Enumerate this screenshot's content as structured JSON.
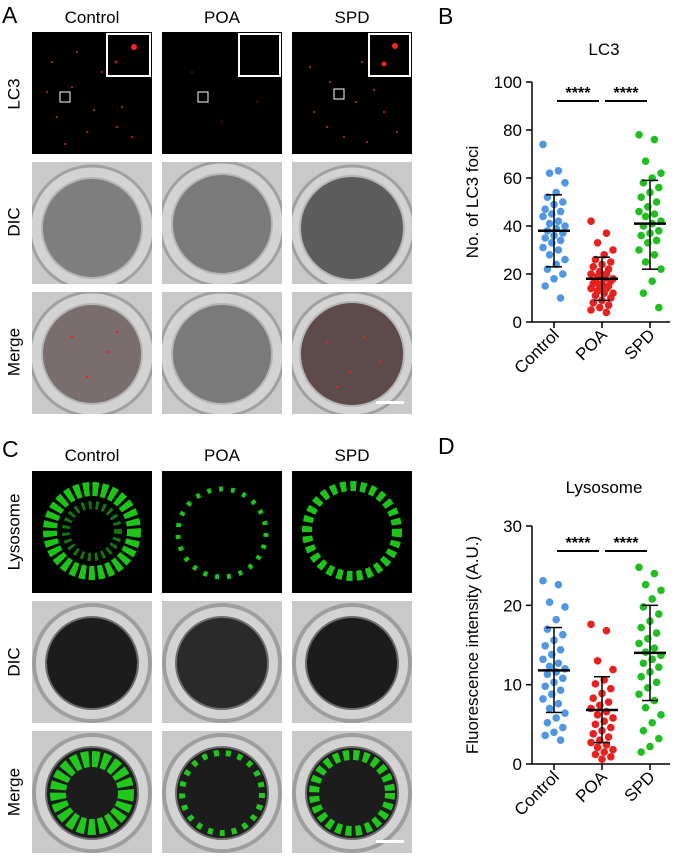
{
  "panels": {
    "A": {
      "letter": "A",
      "columns": [
        "Control",
        "POA",
        "SPD"
      ],
      "rows": [
        "LC3",
        "DIC",
        "Merge"
      ],
      "colors": {
        "fluorescence": "#e8202a"
      }
    },
    "C": {
      "letter": "C",
      "columns": [
        "Control",
        "POA",
        "SPD"
      ],
      "rows": [
        "Lysosome",
        "DIC",
        "Merge"
      ],
      "colors": {
        "fluorescence": "#22e61c"
      }
    }
  },
  "chart_data": [
    {
      "letter": "B",
      "type": "scatter",
      "title": "LC3",
      "ylabel": "No. of LC3 foci",
      "xlabel": "",
      "categories": [
        "Control",
        "POA",
        "SPD"
      ],
      "ylim": [
        0,
        100
      ],
      "yticks": [
        "0",
        "20",
        "40",
        "60",
        "80",
        "100"
      ],
      "grid": false,
      "significance": [
        {
          "from": "Control",
          "to": "POA",
          "label": "****"
        },
        {
          "from": "POA",
          "to": "SPD",
          "label": "****"
        }
      ],
      "series": [
        {
          "color": "#4f97e3",
          "mean": 38,
          "sd_low": 23,
          "sd_high": 53,
          "values": [
            74,
            63,
            62,
            58,
            54,
            52,
            50,
            49,
            47,
            46,
            45,
            44,
            42,
            41,
            40,
            39,
            38,
            37,
            36,
            35,
            34,
            33,
            31,
            30,
            28,
            26,
            24,
            22,
            20,
            18,
            15,
            10
          ]
        },
        {
          "color": "#e8201e",
          "mean": 18,
          "sd_low": 9,
          "sd_high": 27,
          "values": [
            42,
            37,
            33,
            30,
            28,
            26,
            25,
            24,
            23,
            22,
            21,
            20,
            20,
            19,
            18,
            18,
            17,
            17,
            16,
            16,
            15,
            15,
            14,
            14,
            13,
            12,
            12,
            11,
            10,
            9,
            8,
            7,
            6,
            5,
            4
          ]
        },
        {
          "color": "#1fbf1f",
          "mean": 41,
          "sd_low": 22,
          "sd_high": 59,
          "values": [
            78,
            76,
            67,
            62,
            60,
            58,
            56,
            54,
            52,
            50,
            48,
            46,
            45,
            44,
            42,
            41,
            40,
            38,
            37,
            36,
            34,
            33,
            30,
            28,
            25,
            22,
            17,
            12,
            6
          ]
        }
      ]
    },
    {
      "letter": "D",
      "type": "scatter",
      "title": "Lysosome",
      "ylabel": "Fluorescence intensity (A.U.)",
      "xlabel": "",
      "categories": [
        "Control",
        "POA",
        "SPD"
      ],
      "ylim": [
        0,
        30
      ],
      "yticks": [
        "0",
        "10",
        "20",
        "30"
      ],
      "grid": false,
      "significance": [
        {
          "from": "Control",
          "to": "POA",
          "label": "****"
        },
        {
          "from": "POA",
          "to": "SPD",
          "label": "****"
        }
      ],
      "series": [
        {
          "color": "#4f97e3",
          "mean": 11.8,
          "sd_low": 6.5,
          "sd_high": 17.2,
          "values": [
            23.1,
            22.6,
            20.4,
            19.8,
            18.2,
            17.0,
            16.3,
            15.6,
            14.9,
            14.4,
            13.8,
            13.2,
            12.7,
            12.3,
            12.0,
            11.6,
            11.3,
            10.8,
            10.3,
            9.8,
            9.3,
            8.8,
            8.2,
            7.6,
            7.0,
            6.4,
            5.8,
            5.2,
            4.6,
            4.0,
            3.6,
            3.0
          ]
        },
        {
          "color": "#e8201e",
          "mean": 6.8,
          "sd_low": 2.7,
          "sd_high": 11.0,
          "values": [
            17.6,
            16.8,
            13.0,
            11.9,
            10.6,
            10.1,
            9.5,
            8.9,
            8.3,
            7.8,
            7.4,
            7.0,
            6.6,
            6.2,
            5.8,
            5.4,
            5.0,
            4.6,
            4.2,
            3.8,
            3.4,
            3.0,
            2.7,
            2.4,
            2.1,
            1.8,
            1.5,
            1.2,
            0.9,
            0.6
          ]
        },
        {
          "color": "#1fbf1f",
          "mean": 14.0,
          "sd_low": 8.0,
          "sd_high": 20.0,
          "values": [
            24.8,
            24.0,
            22.6,
            21.9,
            20.8,
            19.8,
            18.9,
            18.0,
            17.2,
            16.5,
            15.8,
            15.2,
            14.6,
            14.1,
            13.7,
            13.2,
            12.7,
            12.2,
            11.6,
            11.0,
            10.3,
            9.6,
            8.8,
            8.0,
            7.1,
            6.2,
            5.2,
            4.2,
            3.2,
            2.2,
            1.5
          ]
        }
      ]
    }
  ]
}
